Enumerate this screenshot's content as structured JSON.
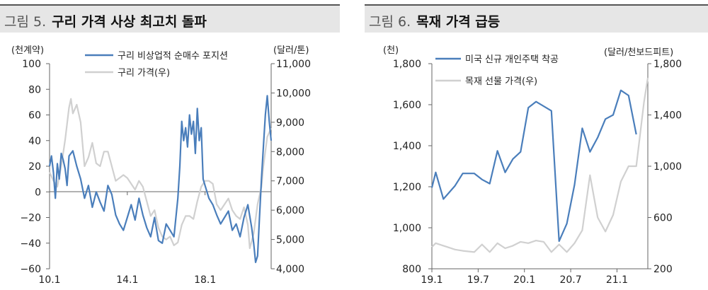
{
  "panels": {
    "left": {
      "fig_num": "그림 5.",
      "title": "구리 가격 사상 최고치 돌파"
    },
    "right": {
      "fig_num": "그림 6.",
      "title": "목재 가격 급등"
    }
  },
  "colors": {
    "primary": "#4a7ebb",
    "secondary": "#d0d0d0",
    "title_bg": "#e6e6e6"
  },
  "chart_data": [
    {
      "type": "line",
      "title": "그림 5. 구리 가격 사상 최고치 돌파",
      "y_left_unit": "(천계약)",
      "y_right_unit": "(달러/톤)",
      "y_left_ticks": [
        "100",
        "80",
        "60",
        "40",
        "20",
        "0",
        "−20",
        "−40",
        "−60"
      ],
      "y_right_ticks": [
        "11,000",
        "10,000",
        "9,000",
        "8,000",
        "7,000",
        "6,000",
        "5,000",
        "4,000"
      ],
      "x_ticks": [
        "10.1",
        "14.1",
        "18.1"
      ],
      "ylim_left": [
        -60,
        100
      ],
      "ylim_right": [
        4000,
        11000
      ],
      "xlim": [
        2010.0,
        2021.4
      ],
      "x_tick_values": [
        2010.0,
        2014.0,
        2018.0
      ],
      "grid": false,
      "legend_position": "top",
      "series": [
        {
          "name": "구리 비상업적 순매수 포지션",
          "axis": "left",
          "color": "#4a7ebb",
          "x": [
            2010.0,
            2010.1,
            2010.2,
            2010.3,
            2010.4,
            2010.5,
            2010.6,
            2010.7,
            2010.8,
            2010.9,
            2011.0,
            2011.2,
            2011.4,
            2011.6,
            2011.8,
            2012.0,
            2012.2,
            2012.4,
            2012.6,
            2012.8,
            2013.0,
            2013.2,
            2013.4,
            2013.6,
            2013.8,
            2014.0,
            2014.2,
            2014.4,
            2014.6,
            2014.8,
            2015.0,
            2015.2,
            2015.4,
            2015.6,
            2015.8,
            2016.0,
            2016.2,
            2016.4,
            2016.6,
            2016.7,
            2016.8,
            2016.9,
            2017.0,
            2017.1,
            2017.2,
            2017.3,
            2017.4,
            2017.5,
            2017.6,
            2017.7,
            2017.8,
            2017.9,
            2018.0,
            2018.2,
            2018.4,
            2018.6,
            2018.8,
            2019.0,
            2019.2,
            2019.4,
            2019.6,
            2019.8,
            2020.0,
            2020.2,
            2020.4,
            2020.5,
            2020.6,
            2020.7,
            2020.8,
            2020.9,
            2021.0,
            2021.1,
            2021.2,
            2021.3,
            2021.4
          ],
          "values": [
            20,
            28,
            15,
            -5,
            22,
            10,
            30,
            25,
            18,
            5,
            28,
            32,
            20,
            10,
            -5,
            5,
            -12,
            0,
            -8,
            -15,
            5,
            -2,
            -18,
            -25,
            -30,
            -20,
            -10,
            -22,
            -5,
            -18,
            -28,
            -35,
            -20,
            -38,
            -40,
            -25,
            -30,
            -35,
            -5,
            20,
            55,
            40,
            50,
            35,
            60,
            45,
            55,
            30,
            65,
            40,
            50,
            10,
            5,
            -5,
            -10,
            -18,
            -25,
            -20,
            -15,
            -30,
            -25,
            -35,
            -20,
            -10,
            -28,
            -40,
            -55,
            -50,
            -20,
            10,
            35,
            60,
            75,
            55,
            40
          ]
        },
        {
          "name": "구리 가격(우)",
          "axis": "right",
          "color": "#d0d0d0",
          "x": [
            2010.0,
            2010.2,
            2010.4,
            2010.6,
            2010.8,
            2011.0,
            2011.1,
            2011.2,
            2011.4,
            2011.6,
            2011.8,
            2012.0,
            2012.2,
            2012.4,
            2012.6,
            2012.8,
            2013.0,
            2013.2,
            2013.4,
            2013.6,
            2013.8,
            2014.0,
            2014.2,
            2014.4,
            2014.6,
            2014.8,
            2015.0,
            2015.2,
            2015.4,
            2015.6,
            2015.8,
            2016.0,
            2016.2,
            2016.4,
            2016.6,
            2016.8,
            2017.0,
            2017.2,
            2017.4,
            2017.6,
            2017.8,
            2018.0,
            2018.2,
            2018.4,
            2018.6,
            2018.8,
            2019.0,
            2019.2,
            2019.4,
            2019.6,
            2019.8,
            2020.0,
            2020.2,
            2020.3,
            2020.5,
            2020.7,
            2020.9,
            2021.0,
            2021.2,
            2021.4
          ],
          "values": [
            7300,
            7000,
            6800,
            7500,
            8400,
            9500,
            9800,
            9300,
            9600,
            9000,
            7500,
            7800,
            8300,
            7600,
            7500,
            8000,
            8000,
            7500,
            7000,
            7100,
            7200,
            7100,
            6900,
            6700,
            7000,
            6800,
            6300,
            5800,
            6000,
            5400,
            5100,
            5000,
            5100,
            4800,
            4900,
            5500,
            5800,
            5800,
            5700,
            6300,
            6800,
            7000,
            7000,
            6900,
            6200,
            6000,
            6200,
            6400,
            6000,
            5800,
            5700,
            6100,
            5500,
            4700,
            5200,
            6200,
            6800,
            7500,
            8500,
            8800
          ]
        }
      ]
    },
    {
      "type": "line",
      "title": "그림 6. 목재 가격 급등",
      "y_left_unit": "(천)",
      "y_right_unit": "(달러/천보드피트)",
      "y_left_ticks": [
        "1,800",
        "1,600",
        "1,400",
        "1,200",
        "1,000",
        "800"
      ],
      "y_right_ticks": [
        "1,800",
        "1,400",
        "1,000",
        "600",
        "200"
      ],
      "x_ticks": [
        "19.1",
        "19.7",
        "20.1",
        "20.7",
        "21.1"
      ],
      "ylim_left": [
        800,
        1800
      ],
      "ylim_right": [
        200,
        1800
      ],
      "xlim": [
        0,
        28
      ],
      "x_tick_values": [
        0,
        6,
        12,
        18,
        24
      ],
      "grid": false,
      "legend_position": "top",
      "series": [
        {
          "name": "미국 신규 개인주택 착공",
          "axis": "left",
          "color": "#4a7ebb",
          "x": [
            0,
            0.5,
            1.5,
            3,
            4,
            5.5,
            6.5,
            7.5,
            8.5,
            9.5,
            10.5,
            11.5,
            12.5,
            13.5,
            15.5,
            16.5,
            17.5,
            18.5,
            19.5,
            20.5,
            21.5,
            22.5,
            23.5,
            24.5,
            25.5,
            26.5
          ],
          "values": [
            1195,
            1270,
            1140,
            1205,
            1265,
            1265,
            1235,
            1215,
            1375,
            1270,
            1335,
            1370,
            1585,
            1615,
            1570,
            935,
            1020,
            1210,
            1485,
            1370,
            1440,
            1530,
            1550,
            1670,
            1645,
            1455
          ]
        },
        {
          "name": "목재 선물 가격(우)",
          "axis": "right",
          "color": "#d0d0d0",
          "x": [
            0,
            0.5,
            1.5,
            3,
            4,
            5.5,
            6.5,
            7.5,
            8.5,
            9.5,
            10.5,
            11.5,
            12.5,
            13.5,
            14.5,
            15.5,
            16.5,
            17.5,
            18.5,
            19.5,
            20.5,
            21.5,
            22.5,
            23.5,
            24.5,
            25.5,
            26.5,
            27.5,
            28
          ],
          "values": [
            370,
            400,
            380,
            350,
            340,
            330,
            390,
            330,
            400,
            360,
            380,
            410,
            400,
            420,
            410,
            330,
            390,
            330,
            400,
            500,
            930,
            600,
            490,
            620,
            880,
            1000,
            1000,
            1500,
            1690
          ]
        }
      ]
    }
  ]
}
